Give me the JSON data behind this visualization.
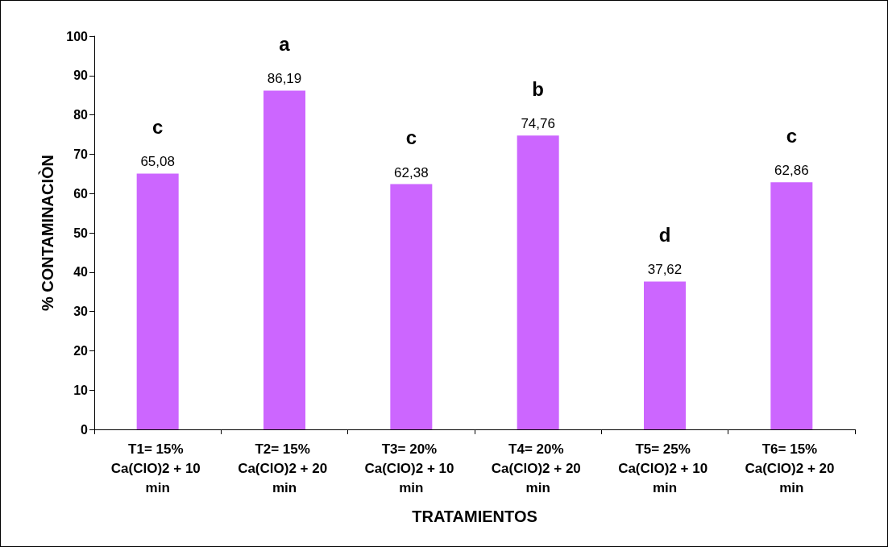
{
  "chart_data": {
    "type": "bar",
    "xlabel": "TRATAMIENTOS",
    "ylabel": "% CONTAMINACIÒN",
    "categories": [
      "T1= 15% Ca(ClO)2 + 10 min",
      "T2= 15% Ca(ClO)2 + 20 min",
      "T3= 20% Ca(ClO)2 + 10 min",
      "T4= 20% Ca(ClO)2 + 20 min",
      "T5= 25% Ca(ClO)2 + 10 min",
      "T6= 15% Ca(ClO)2 + 20 min"
    ],
    "values": [
      65.08,
      86.19,
      62.38,
      74.76,
      37.62,
      62.86
    ],
    "value_labels": [
      "65,08",
      "86,19",
      "62,38",
      "74,76",
      "37,62",
      "62,86"
    ],
    "color": "#cc66ff",
    "ylim": [
      0,
      100
    ],
    "yticks": [
      0,
      10,
      20,
      30,
      40,
      50,
      60,
      70,
      80,
      90,
      100
    ],
    "grid": false,
    "annotations": [
      "c",
      "a",
      "c",
      "b",
      "d",
      "c"
    ]
  }
}
